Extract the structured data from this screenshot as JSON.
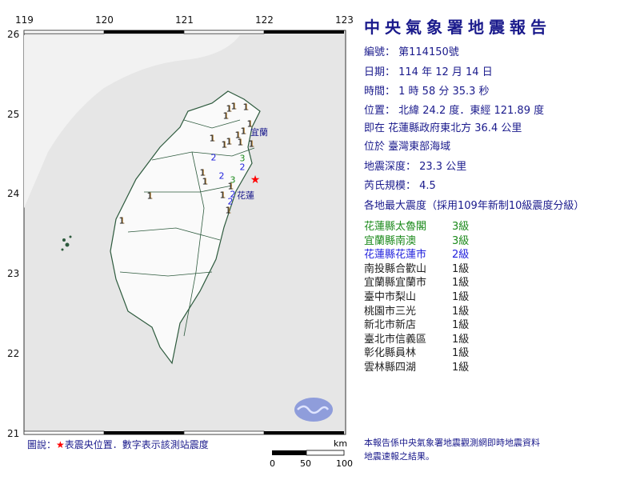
{
  "map": {
    "lon_ticks": [
      "119",
      "120",
      "121",
      "122",
      "123"
    ],
    "lat_ticks": [
      "26",
      "25",
      "24",
      "23",
      "22",
      "21"
    ],
    "epicenter": {
      "lon": 121.89,
      "lat": 24.2,
      "color": "#ff0000",
      "icon": "red-star-icon"
    },
    "place_labels": [
      "宜蘭",
      "花蓮"
    ],
    "stations": [
      {
        "intensity": "1"
      },
      {
        "intensity": "1"
      },
      {
        "intensity": "1"
      },
      {
        "intensity": "1"
      },
      {
        "intensity": "1"
      },
      {
        "intensity": "1"
      },
      {
        "intensity": "1"
      },
      {
        "intensity": "1"
      },
      {
        "intensity": "1"
      },
      {
        "intensity": "1"
      },
      {
        "intensity": "1"
      },
      {
        "intensity": "1"
      },
      {
        "intensity": "2"
      },
      {
        "intensity": "3"
      },
      {
        "intensity": "2"
      },
      {
        "intensity": "1"
      },
      {
        "intensity": "2"
      },
      {
        "intensity": "1"
      },
      {
        "intensity": "3"
      },
      {
        "intensity": "1"
      },
      {
        "intensity": "1"
      },
      {
        "intensity": "2"
      },
      {
        "intensity": "2"
      },
      {
        "intensity": "1"
      },
      {
        "intensity": "1"
      },
      {
        "intensity": "1"
      }
    ],
    "legend": {
      "prefix": "圖說：",
      "star": "★",
      "text": "表震央位置．數字表示該測站震度"
    },
    "scale": {
      "unit": "km",
      "labels": [
        "0",
        "50",
        "100"
      ]
    },
    "logo": "cwa-logo"
  },
  "report": {
    "title": "中央氣象署地震報告",
    "number": "編號：  第114150號",
    "date": "日期：  114  年  12  月  14  日",
    "time": "時間：  1  時  58  分  35.3  秒",
    "location": "位置：  北緯  24.2  度．東經  121.89  度",
    "relative": "即在  花蓮縣政府東北方  36.4  公里",
    "region": "位於  臺灣東部海域",
    "depth": "地震深度：  23.3  公里",
    "magnitude": "芮氏規模：  4.5",
    "intensity_header": "各地最大震度（採用109年新制10級震度分級）",
    "intensities": [
      {
        "place": "花蓮縣太魯閣",
        "level": "3級",
        "color": "#1c8a1c"
      },
      {
        "place": "宜蘭縣南澳",
        "level": "3級",
        "color": "#1c8a1c"
      },
      {
        "place": "花蓮縣花蓮市",
        "level": "2級",
        "color": "#2222dd"
      },
      {
        "place": "南投縣合歡山",
        "level": "1級",
        "color": "#222222"
      },
      {
        "place": "宜蘭縣宜蘭市",
        "level": "1級",
        "color": "#222222"
      },
      {
        "place": "臺中市梨山",
        "level": "1級",
        "color": "#222222"
      },
      {
        "place": "桃園市三光",
        "level": "1級",
        "color": "#222222"
      },
      {
        "place": "新北市新店",
        "level": "1級",
        "color": "#222222"
      },
      {
        "place": "臺北市信義區",
        "level": "1級",
        "color": "#222222"
      },
      {
        "place": "彰化縣員林",
        "level": "1級",
        "color": "#222222"
      },
      {
        "place": "雲林縣四湖",
        "level": "1級",
        "color": "#222222"
      }
    ],
    "footnote_1": "本報告係中央氣象署地震觀測網即時地震資料",
    "footnote_2": "地震速報之結果。"
  }
}
